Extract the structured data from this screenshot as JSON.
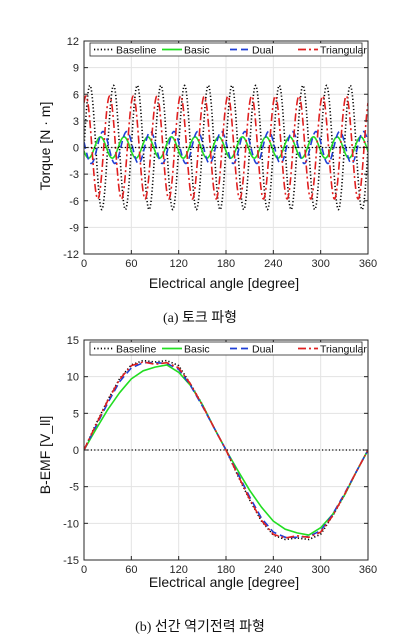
{
  "chart_data": [
    {
      "type": "line",
      "title": "",
      "xlabel": "Electrical angle [degree]",
      "ylabel": "Torque  [N · m]",
      "xlim": [
        0,
        360
      ],
      "ylim": [
        -12,
        12
      ],
      "xticks": [
        "0",
        "60",
        "120",
        "180",
        "240",
        "300",
        "360"
      ],
      "yticks": [
        "12",
        "9",
        "6",
        "3",
        "0",
        "-3",
        "-6",
        "-9",
        "-12"
      ],
      "grid": true,
      "legend_position": "top",
      "caption": "(a)  토크 파형",
      "series": [
        {
          "name": "Baseline",
          "color": "#000000",
          "dash": "dotted",
          "model": "sine",
          "amplitude": 7.0,
          "periods": 12,
          "phase_deg": 0
        },
        {
          "name": "Basic",
          "color": "#22dd22",
          "dash": "solid",
          "model": "sine",
          "amplitude": 1.2,
          "periods": 12,
          "phase_deg": 200
        },
        {
          "name": "Dual",
          "color": "#1f3fd6",
          "dash": "dashed",
          "model": "sine",
          "amplitude": 1.8,
          "periods": 12,
          "phase_deg": 160
        },
        {
          "name": "Triangular",
          "color": "#e02020",
          "dash": "dashdot",
          "model": "sine",
          "amplitude": 5.8,
          "periods": 12,
          "phase_deg": 60
        }
      ]
    },
    {
      "type": "line",
      "title": "",
      "xlabel": "Electrical angle [degree]",
      "ylabel": "B-EMF  [V_ll]",
      "xlim": [
        0,
        360
      ],
      "ylim": [
        -15,
        15
      ],
      "xticks": [
        "0",
        "60",
        "120",
        "180",
        "240",
        "300",
        "360"
      ],
      "yticks": [
        "15",
        "10",
        "5",
        "0",
        "-5",
        "-10",
        "-15"
      ],
      "grid": true,
      "legend_position": "top",
      "caption": "(b)  선간 역기전력 파형",
      "x": [
        0,
        15,
        30,
        45,
        60,
        75,
        90,
        105,
        120,
        135,
        150,
        165,
        180,
        195,
        210,
        225,
        240,
        255,
        270,
        285,
        300,
        315,
        330,
        345,
        360
      ],
      "series": [
        {
          "name": "Baseline",
          "color": "#000000",
          "dash": "dotted",
          "values": [
            0,
            3.5,
            6.8,
            9.7,
            11.6,
            12.2,
            12.0,
            12.2,
            11.5,
            9.0,
            6.2,
            3.0,
            0,
            -3.5,
            -6.8,
            -9.7,
            -11.6,
            -12.2,
            -12.0,
            -12.2,
            -11.5,
            -9.0,
            -6.2,
            -3.0,
            0
          ]
        },
        {
          "name": "Basic",
          "color": "#22dd22",
          "dash": "solid",
          "values": [
            0,
            2.8,
            5.5,
            7.8,
            9.7,
            10.8,
            11.3,
            11.6,
            10.6,
            8.8,
            6.2,
            3.0,
            0,
            -2.8,
            -5.5,
            -7.8,
            -9.7,
            -10.8,
            -11.3,
            -11.6,
            -10.6,
            -8.8,
            -6.2,
            -3.0,
            0
          ]
        },
        {
          "name": "Dual",
          "color": "#1f3fd6",
          "dash": "dashed",
          "values": [
            0,
            3.2,
            6.4,
            9.3,
            11.2,
            11.9,
            11.9,
            11.8,
            11.0,
            8.8,
            6.0,
            3.0,
            0,
            -3.2,
            -6.4,
            -9.3,
            -11.2,
            -11.9,
            -11.9,
            -11.8,
            -11.0,
            -8.8,
            -6.0,
            -3.0,
            0
          ]
        },
        {
          "name": "Triangular",
          "color": "#e02020",
          "dash": "dashdot",
          "values": [
            0,
            3.4,
            6.7,
            9.6,
            11.5,
            12.0,
            11.7,
            11.9,
            11.2,
            9.0,
            6.1,
            3.0,
            0,
            -3.4,
            -6.7,
            -9.6,
            -11.5,
            -12.0,
            -11.7,
            -11.9,
            -11.2,
            -9.0,
            -6.1,
            -3.0,
            0
          ]
        }
      ]
    }
  ]
}
